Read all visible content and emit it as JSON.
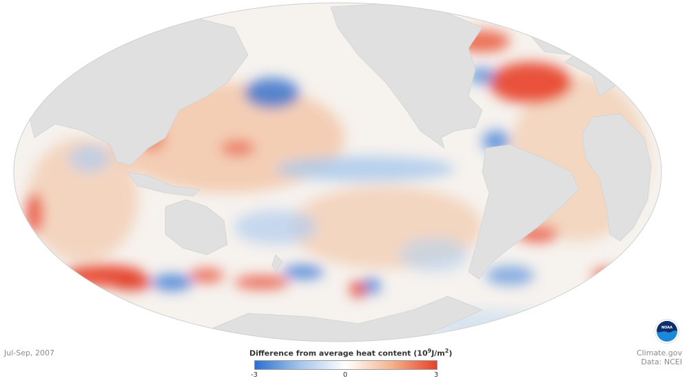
{
  "map": {
    "projection": "mollweide",
    "land_color": "#e0e0e0",
    "ocean_base_color": "#f6f2ee"
  },
  "period_label": "Jul-Sep, 2007",
  "legend": {
    "title_prefix": "Difference from average heat content (10",
    "title_exp1": "9",
    "title_mid": "J/m",
    "title_exp2": "2",
    "title_suffix": ")",
    "min_label": "-3",
    "mid_label": "0",
    "max_label": "3",
    "min": -3,
    "max": 3,
    "colors": [
      "#2e6fd0",
      "#a6c6ea",
      "#ffffff",
      "#f3b48e",
      "#e8402a"
    ]
  },
  "credits": {
    "source": "Climate.gov",
    "data": "Data: NCEI"
  },
  "logo": {
    "text": "NOAA",
    "ring_color": "#ffffff",
    "top_color": "#0d2f6b",
    "bottom_color": "#1e88d8"
  }
}
